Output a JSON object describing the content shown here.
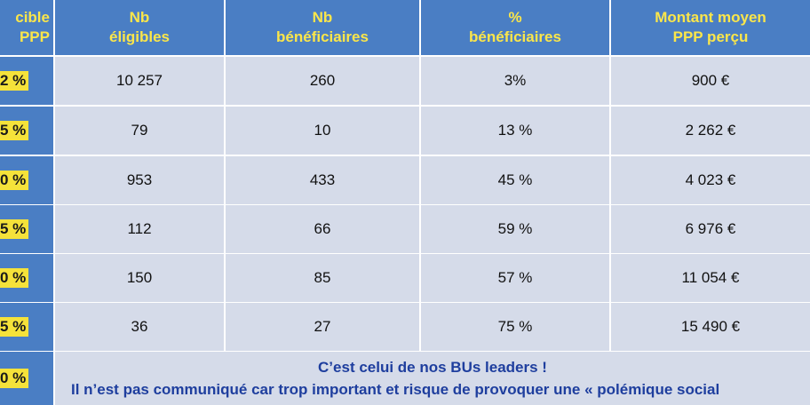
{
  "headers": [
    {
      "line1": "cible",
      "line2": "PPP"
    },
    {
      "line1": "Nb",
      "line2": "éligibles"
    },
    {
      "line1": "Nb",
      "line2": "bénéficiaires"
    },
    {
      "line1": "%",
      "line2": "bénéficiaires"
    },
    {
      "line1": "Montant moyen",
      "line2": "PPP perçu"
    }
  ],
  "rows": [
    {
      "cible": "2 %",
      "eligibles": "10 257",
      "beneficiaires": "260",
      "pct": "3%",
      "montant": "900 €"
    },
    {
      "cible": "5 %",
      "eligibles": "79",
      "beneficiaires": "10",
      "pct": "13 %",
      "montant": "2 262 €"
    },
    {
      "cible": "0 %",
      "eligibles": "953",
      "beneficiaires": "433",
      "pct": "45 %",
      "montant": "4 023 €"
    },
    {
      "cible": "5 %",
      "eligibles": "112",
      "beneficiaires": "66",
      "pct": "59 %",
      "montant": "6 976 €"
    },
    {
      "cible": "0 %",
      "eligibles": "150",
      "beneficiaires": "85",
      "pct": "57 %",
      "montant": "11 054 €"
    },
    {
      "cible": "5 %",
      "eligibles": "36",
      "beneficiaires": "27",
      "pct": "75 %",
      "montant": "15 490 €"
    }
  ],
  "last_row": {
    "cible": "0 %",
    "message_line1": "C’est celui de nos BUs leaders !",
    "message_line2": "Il n’est pas communiqué car trop important et risque de provoquer une « polémique social"
  }
}
